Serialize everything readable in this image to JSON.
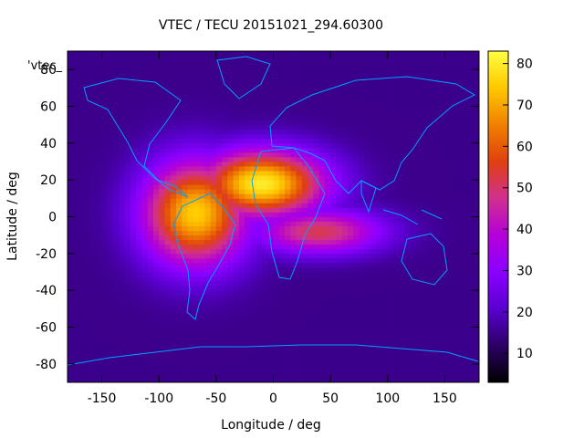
{
  "chart_data": {
    "type": "heatmap",
    "title": "VTEC / TECU 20151021_294.60300",
    "key_label": "'vtec_",
    "xlabel": "Longitude / deg",
    "ylabel": "Latitude / deg",
    "xlim": [
      -180,
      180
    ],
    "ylim": [
      -90,
      90
    ],
    "xticks": [
      -150,
      -100,
      -50,
      0,
      50,
      100,
      150
    ],
    "yticks": [
      -80,
      -60,
      -40,
      -20,
      0,
      20,
      40,
      60,
      80
    ],
    "colorbar": {
      "range": [
        3,
        83
      ],
      "ticks": [
        10,
        20,
        30,
        40,
        50,
        60,
        70,
        80
      ],
      "palette": [
        "#000000",
        "#2b0066",
        "#5a00d0",
        "#8a00ff",
        "#b400d8",
        "#d03090",
        "#e04010",
        "#f08000",
        "#ffc800",
        "#ffff40"
      ]
    },
    "grid": false,
    "features": {
      "tec_peaks": [
        {
          "lon": -10,
          "lat": 18,
          "vtec": 80
        },
        {
          "lon": -68,
          "lat": 2,
          "vtec": 75
        },
        {
          "lon": 40,
          "lat": -8,
          "vtec": 52
        }
      ],
      "background_vtec": 15,
      "polar_min_vtec": 5
    },
    "coastline_color": "#00a0ff"
  }
}
